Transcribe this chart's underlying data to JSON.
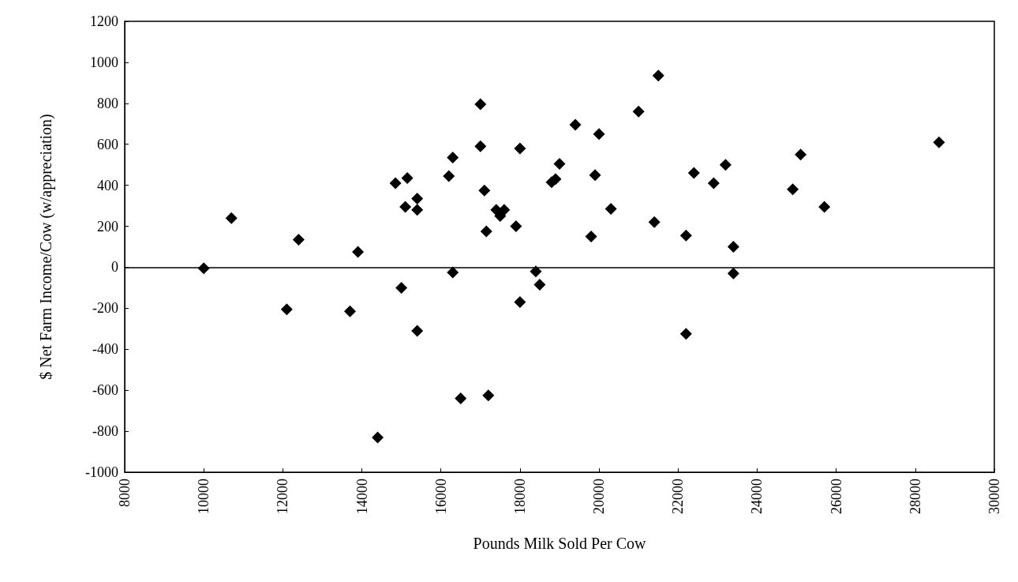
{
  "chart_data": {
    "type": "scatter",
    "xlabel": "Pounds Milk Sold Per Cow",
    "ylabel": "$ Net Farm Income/Cow (w/appreciation)",
    "x": [
      10000,
      10700,
      12100,
      12400,
      13700,
      13900,
      14400,
      14850,
      15000,
      15100,
      15150,
      15400,
      15400,
      15400,
      16200,
      16300,
      16300,
      16500,
      17000,
      17000,
      17100,
      17150,
      17200,
      17400,
      17500,
      17600,
      17900,
      18000,
      18000,
      18400,
      18500,
      18800,
      18900,
      19000,
      19400,
      19800,
      19900,
      20000,
      20300,
      21000,
      21400,
      21500,
      22200,
      22200,
      22400,
      22900,
      23200,
      23400,
      23400,
      24900,
      25100,
      25700,
      28600
    ],
    "values": [
      -5,
      240,
      -205,
      135,
      -215,
      75,
      -830,
      410,
      -100,
      295,
      435,
      280,
      335,
      -310,
      445,
      535,
      -25,
      -640,
      590,
      795,
      375,
      175,
      -625,
      280,
      250,
      280,
      200,
      580,
      -170,
      -20,
      -85,
      415,
      430,
      505,
      695,
      150,
      450,
      650,
      285,
      760,
      220,
      935,
      155,
      -325,
      460,
      410,
      500,
      100,
      -30,
      380,
      550,
      295,
      610
    ],
    "color": "#000000",
    "marker": "diamond",
    "xlim": [
      8000,
      30000
    ],
    "xticks": [
      8000,
      10000,
      12000,
      14000,
      16000,
      18000,
      20000,
      22000,
      24000,
      26000,
      28000,
      30000
    ],
    "ylim": [
      -1000,
      1200
    ],
    "yticks": [
      -1000,
      -800,
      -600,
      -400,
      -200,
      0,
      200,
      400,
      600,
      800,
      1000,
      1200
    ],
    "ref_lines": [
      {
        "axis": "y",
        "value": 0,
        "color": "#000000"
      }
    ],
    "grid": false
  }
}
